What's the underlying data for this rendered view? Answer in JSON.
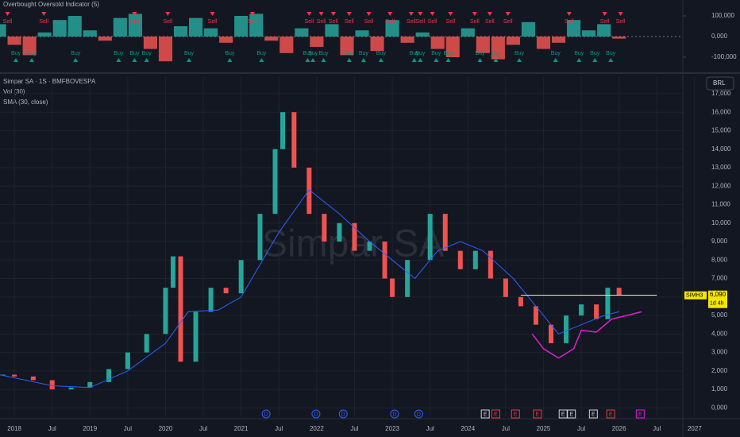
{
  "chart_data": [
    {
      "type": "oscillator",
      "title": "Overbought Oversold Indicator (5)",
      "x": [
        2017.8,
        2018.0,
        2018.2,
        2018.4,
        2018.6,
        2018.8,
        2019.0,
        2019.2,
        2019.4,
        2019.6,
        2019.8,
        2020.0,
        2020.2,
        2020.4,
        2020.6,
        2020.8,
        2021.0,
        2021.2,
        2021.4,
        2021.6,
        2021.8,
        2022.0,
        2022.2,
        2022.4,
        2022.6,
        2022.8,
        2023.0,
        2023.2,
        2023.4,
        2023.6,
        2023.8,
        2024.0,
        2024.2,
        2024.4,
        2024.6,
        2024.8,
        2025.0,
        2025.2,
        2025.4,
        2025.6,
        2025.8,
        2026.0
      ],
      "values": [
        60000,
        -40000,
        -90000,
        20000,
        80000,
        100000,
        30000,
        -20000,
        90000,
        110000,
        -60000,
        -120000,
        50000,
        90000,
        40000,
        -30000,
        100000,
        110000,
        -20000,
        -80000,
        40000,
        -50000,
        60000,
        -90000,
        30000,
        -70000,
        80000,
        -30000,
        20000,
        -60000,
        -100000,
        40000,
        -80000,
        -110000,
        -40000,
        70000,
        -60000,
        -30000,
        80000,
        30000,
        60000,
        -10000
      ],
      "positive_color": "#26a69a",
      "negative_color": "#ef5350",
      "sell_signals": {
        "label": "Sell",
        "color": "#f23645",
        "x": [
          2017.91,
          2018.39,
          2019.59,
          2020.03,
          2020.62,
          2021.15,
          2021.9,
          2022.06,
          2022.22,
          2022.43,
          2022.69,
          2022.97,
          2023.25,
          2023.37,
          2023.53,
          2023.77,
          2024.09,
          2024.29,
          2024.53,
          2025.34,
          2025.81,
          2026.02
        ]
      },
      "buy_signals": {
        "label": "Buy",
        "color": "#089981",
        "x": [
          2018.02,
          2018.23,
          2018.81,
          2019.38,
          2019.59,
          2019.75,
          2020.31,
          2020.85,
          2021.27,
          2021.88,
          2021.95,
          2022.09,
          2022.43,
          2022.62,
          2022.85,
          2023.29,
          2023.37,
          2023.58,
          2023.74,
          2024.16,
          2024.37,
          2024.68,
          2025.16,
          2025.47,
          2025.68,
          2025.89
        ]
      },
      "xlim": [
        2017.81,
        2027.6
      ],
      "ylim": [
        -150000,
        150000
      ],
      "yticks": [
        {
          "value": 100000,
          "label": "100,000"
        },
        {
          "value": 0,
          "label": "0,000"
        },
        {
          "value": -100000,
          "label": "-100,000"
        }
      ]
    },
    {
      "type": "candles",
      "title": "Simpar SA · 1S · BMFBOVESPA",
      "watermark": "Simpar SA",
      "indicators": [
        "Vol (30)",
        "SMA (30, close)"
      ],
      "currency": "BRL",
      "symbol": "SIMH3",
      "last_price": {
        "value": 6090,
        "label": "6,090"
      },
      "countdown": "1d 4h",
      "x": [
        2017.85,
        2018.0,
        2018.25,
        2018.5,
        2018.75,
        2019.0,
        2019.25,
        2019.5,
        2019.75,
        2020.0,
        2020.1,
        2020.2,
        2020.4,
        2020.6,
        2020.8,
        2021.0,
        2021.25,
        2021.45,
        2021.55,
        2021.7,
        2021.9,
        2022.1,
        2022.3,
        2022.5,
        2022.7,
        2022.9,
        2023.0,
        2023.2,
        2023.5,
        2023.7,
        2023.9,
        2024.1,
        2024.3,
        2024.5,
        2024.7,
        2024.9,
        2025.1,
        2025.3,
        2025.5,
        2025.7,
        2025.85,
        2026.0
      ],
      "series": [
        {
          "name": "Price",
          "up_color": "#26a69a",
          "down_color": "#ef5350",
          "values": [
            1800,
            1700,
            1500,
            1000,
            1100,
            1400,
            2100,
            3000,
            4000,
            6500,
            8200,
            2500,
            5200,
            6500,
            6200,
            8000,
            10500,
            14000,
            16000,
            13000,
            10500,
            9000,
            10000,
            8500,
            9000,
            7000,
            6000,
            8000,
            10500,
            8500,
            7500,
            8500,
            7000,
            6000,
            5500,
            4500,
            3500,
            5000,
            5600,
            4800,
            6500,
            6090
          ]
        },
        {
          "name": "SMA (30, close)",
          "color": "#2962ff",
          "x": [
            2017.8,
            2018.5,
            2019.0,
            2019.5,
            2020.0,
            2020.3,
            2020.7,
            2021.0,
            2021.5,
            2021.9,
            2022.3,
            2022.7,
            2023.0,
            2023.3,
            2023.6,
            2023.9,
            2024.2,
            2024.6,
            2024.9,
            2025.2,
            2025.5,
            2025.8,
            2026.0
          ],
          "values": [
            1800,
            1200,
            1100,
            2000,
            3500,
            5200,
            5300,
            6000,
            9500,
            11800,
            10500,
            9000,
            8000,
            7000,
            8500,
            9000,
            8500,
            7000,
            5500,
            4000,
            4500,
            5000,
            5200
          ]
        }
      ],
      "drawings": {
        "resistance": {
          "value": 6100,
          "x": [
            2024.7,
            2026.5
          ],
          "color": "#f0e6c8"
        },
        "cup": {
          "color": "#e020d0",
          "x": [
            2024.85,
            2025.0,
            2025.2,
            2025.4,
            2025.5,
            2025.7,
            2025.9,
            2026.1,
            2026.3
          ],
          "values": [
            4000,
            3200,
            2700,
            3200,
            4200,
            4100,
            4800,
            5000,
            5200
          ]
        }
      },
      "events": [
        {
          "x": 2021.33,
          "label": "D",
          "color": "#2962ff"
        },
        {
          "x": 2021.99,
          "label": "D",
          "color": "#2962ff"
        },
        {
          "x": 2022.35,
          "label": "D",
          "color": "#2962ff"
        },
        {
          "x": 2023.03,
          "label": "D",
          "color": "#2962ff"
        },
        {
          "x": 2023.35,
          "label": "D",
          "color": "#2962ff"
        },
        {
          "x": 2024.23,
          "label": "E",
          "color": "#d1d4dc"
        },
        {
          "x": 2024.37,
          "label": "E",
          "color": "#f23645"
        },
        {
          "x": 2024.63,
          "label": "E",
          "color": "#f23645"
        },
        {
          "x": 2024.92,
          "label": "E",
          "color": "#f23645"
        },
        {
          "x": 2025.26,
          "label": "E",
          "color": "#d1d4dc"
        },
        {
          "x": 2025.37,
          "label": "E",
          "color": "#d1d4dc"
        },
        {
          "x": 2025.66,
          "label": "E",
          "color": "#d1d4dc"
        },
        {
          "x": 2025.89,
          "label": "E",
          "color": "#f23645"
        },
        {
          "x": 2026.28,
          "label": "E",
          "color": "#e020d0"
        }
      ],
      "xlim": [
        2017.81,
        2027.6
      ],
      "ylim": [
        -500,
        17900
      ],
      "yticks": [
        {
          "value": 0,
          "label": "0,000"
        },
        {
          "value": 1000,
          "label": "1,000"
        },
        {
          "value": 2000,
          "label": "2,000"
        },
        {
          "value": 3000,
          "label": "3,000"
        },
        {
          "value": 4000,
          "label": "4,000"
        },
        {
          "value": 5000,
          "label": "5,000"
        },
        {
          "value": 6000,
          "label": "6,000"
        },
        {
          "value": 7000,
          "label": "7,000"
        },
        {
          "value": 8000,
          "label": "8,000"
        },
        {
          "value": 9000,
          "label": "9,000"
        },
        {
          "value": 10000,
          "label": "10,000"
        },
        {
          "value": 11000,
          "label": "11,000"
        },
        {
          "value": 12000,
          "label": "12,000"
        },
        {
          "value": 13000,
          "label": "13,000"
        },
        {
          "value": 14000,
          "label": "14,000"
        },
        {
          "value": 15000,
          "label": "15,000"
        },
        {
          "value": 16000,
          "label": "16,000"
        },
        {
          "value": 17000,
          "label": "17,000"
        }
      ],
      "xticks": [
        2018,
        {
          "value": 2018.5,
          "label": "Jul"
        },
        2019,
        {
          "value": 2019.5,
          "label": "Jul"
        },
        2020,
        {
          "value": 2020.5,
          "label": "Jul"
        },
        2021,
        {
          "value": 2021.5,
          "label": "Jul"
        },
        2022,
        {
          "value": 2022.5,
          "label": "Jul"
        },
        2023,
        {
          "value": 2023.5,
          "label": "Jul"
        },
        2024,
        {
          "value": 2024.5,
          "label": "Jul"
        },
        2025,
        {
          "value": 2025.5,
          "label": "Jul"
        },
        2026,
        {
          "value": 2026.5,
          "label": "Jul"
        },
        2027
      ]
    }
  ]
}
